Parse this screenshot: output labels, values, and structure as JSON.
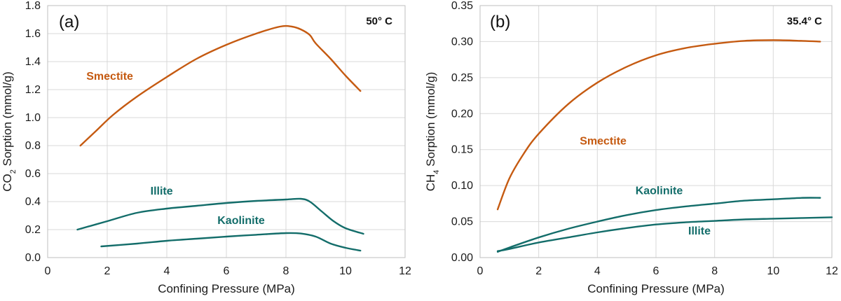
{
  "colors": {
    "smectite": "#c55a11",
    "clay_teal": "#136d6a"
  },
  "chart_data": [
    {
      "type": "line",
      "panel_label": "(a)",
      "temperature": "50° C",
      "xlabel": "Confining Pressure (MPa)",
      "ylabel_parts": {
        "pre": "CO",
        "sub": "2",
        "post": " Sorption (mmol/g)"
      },
      "xlim": [
        0,
        12
      ],
      "ylim": [
        0,
        1.8
      ],
      "xticks": [
        "0",
        "2",
        "4",
        "6",
        "8",
        "10",
        "12"
      ],
      "yticks": [
        "0.0",
        "0.2",
        "0.4",
        "0.6",
        "0.8",
        "1.0",
        "1.2",
        "1.4",
        "1.6",
        "1.8"
      ],
      "series": [
        {
          "name": "Smectite",
          "color_key": "smectite",
          "label_at": [
            1.3,
            1.27
          ],
          "points": [
            [
              1.1,
              0.8
            ],
            [
              1.6,
              0.9
            ],
            [
              2.2,
              1.02
            ],
            [
              3.0,
              1.15
            ],
            [
              4.0,
              1.29
            ],
            [
              5.0,
              1.42
            ],
            [
              6.0,
              1.52
            ],
            [
              7.0,
              1.6
            ],
            [
              7.8,
              1.65
            ],
            [
              8.2,
              1.65
            ],
            [
              8.5,
              1.63
            ],
            [
              8.8,
              1.59
            ],
            [
              9.0,
              1.53
            ],
            [
              9.5,
              1.42
            ],
            [
              10.0,
              1.3
            ],
            [
              10.5,
              1.19
            ]
          ]
        },
        {
          "name": "Illite",
          "color_key": "clay_teal",
          "label_at": [
            3.45,
            0.45
          ],
          "points": [
            [
              1.0,
              0.2
            ],
            [
              2.0,
              0.26
            ],
            [
              3.0,
              0.32
            ],
            [
              4.0,
              0.35
            ],
            [
              5.0,
              0.37
            ],
            [
              6.0,
              0.39
            ],
            [
              7.0,
              0.405
            ],
            [
              8.0,
              0.415
            ],
            [
              8.5,
              0.42
            ],
            [
              8.8,
              0.4
            ],
            [
              9.2,
              0.33
            ],
            [
              9.6,
              0.26
            ],
            [
              10.0,
              0.21
            ],
            [
              10.6,
              0.17
            ]
          ]
        },
        {
          "name": "Kaolinite",
          "color_key": "clay_teal",
          "label_at": [
            5.7,
            0.24
          ],
          "points": [
            [
              1.8,
              0.08
            ],
            [
              3.0,
              0.1
            ],
            [
              4.0,
              0.12
            ],
            [
              5.0,
              0.135
            ],
            [
              6.0,
              0.15
            ],
            [
              7.0,
              0.163
            ],
            [
              8.0,
              0.175
            ],
            [
              8.5,
              0.172
            ],
            [
              9.0,
              0.15
            ],
            [
              9.5,
              0.1
            ],
            [
              10.0,
              0.07
            ],
            [
              10.5,
              0.05
            ]
          ]
        }
      ]
    },
    {
      "type": "line",
      "panel_label": "(b)",
      "temperature": "35.4° C",
      "xlabel": "Confining Pressure (MPa)",
      "ylabel_parts": {
        "pre": "CH",
        "sub": "4",
        "post": " Sorption (mmol/g)"
      },
      "xlim": [
        0,
        12
      ],
      "ylim": [
        0,
        0.35
      ],
      "xticks": [
        "0",
        "2",
        "4",
        "6",
        "8",
        "10",
        "12"
      ],
      "yticks": [
        "0.00",
        "0.05",
        "0.10",
        "0.15",
        "0.20",
        "0.25",
        "0.30",
        "0.35"
      ],
      "series": [
        {
          "name": "Smectite",
          "color_key": "smectite",
          "label_at": [
            3.4,
            0.157
          ],
          "points": [
            [
              0.6,
              0.067
            ],
            [
              1.0,
              0.11
            ],
            [
              1.5,
              0.145
            ],
            [
              2.0,
              0.172
            ],
            [
              3.0,
              0.213
            ],
            [
              4.0,
              0.243
            ],
            [
              5.0,
              0.265
            ],
            [
              6.0,
              0.281
            ],
            [
              7.0,
              0.291
            ],
            [
              8.0,
              0.297
            ],
            [
              9.0,
              0.301
            ],
            [
              10.0,
              0.302
            ],
            [
              11.0,
              0.301
            ],
            [
              11.6,
              0.3
            ]
          ]
        },
        {
          "name": "Kaolinite",
          "color_key": "clay_teal",
          "label_at": [
            5.3,
            0.088
          ],
          "points": [
            [
              0.6,
              0.008
            ],
            [
              1.0,
              0.014
            ],
            [
              2.0,
              0.028
            ],
            [
              3.0,
              0.04
            ],
            [
              4.0,
              0.05
            ],
            [
              5.0,
              0.059
            ],
            [
              6.0,
              0.066
            ],
            [
              7.0,
              0.071
            ],
            [
              8.0,
              0.075
            ],
            [
              9.0,
              0.079
            ],
            [
              10.0,
              0.081
            ],
            [
              11.0,
              0.083
            ],
            [
              11.6,
              0.083
            ]
          ]
        },
        {
          "name": "Illite",
          "color_key": "clay_teal",
          "label_at": [
            7.1,
            0.032
          ],
          "points": [
            [
              0.6,
              0.009
            ],
            [
              1.0,
              0.012
            ],
            [
              2.0,
              0.021
            ],
            [
              3.0,
              0.028
            ],
            [
              4.0,
              0.035
            ],
            [
              5.0,
              0.041
            ],
            [
              6.0,
              0.046
            ],
            [
              7.0,
              0.049
            ],
            [
              8.0,
              0.051
            ],
            [
              9.0,
              0.053
            ],
            [
              10.0,
              0.054
            ],
            [
              11.0,
              0.055
            ],
            [
              12.0,
              0.056
            ]
          ]
        }
      ]
    }
  ]
}
